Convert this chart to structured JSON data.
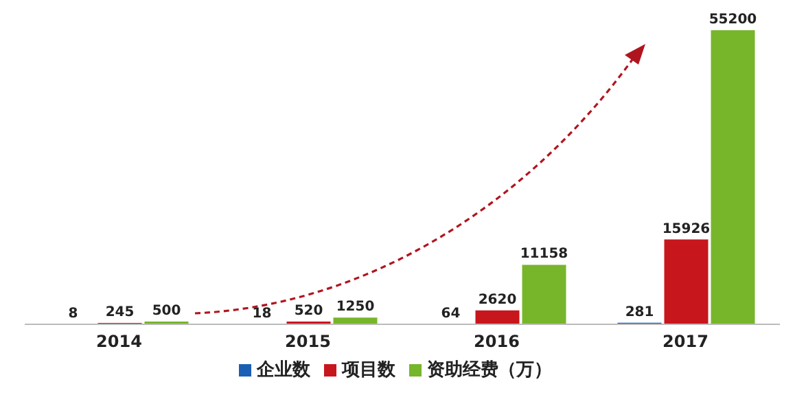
{
  "chart_data": {
    "type": "bar",
    "categories": [
      "2014",
      "2015",
      "2016",
      "2017"
    ],
    "series": [
      {
        "name": "企业数",
        "color": "#1a5fb4",
        "values": [
          8,
          18,
          64,
          281
        ]
      },
      {
        "name": "项目数",
        "color": "#c8161d",
        "values": [
          245,
          520,
          2620,
          15926
        ]
      },
      {
        "name": "资助经费（万）",
        "color": "#77b52b",
        "values": [
          500,
          1250,
          11158,
          55200
        ]
      }
    ],
    "data_labels": true,
    "legend": "bottom",
    "grid": false
  }
}
